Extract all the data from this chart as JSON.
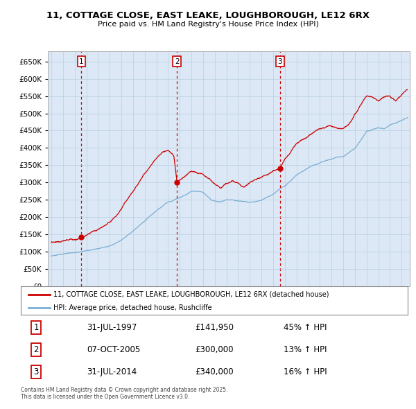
{
  "title": "11, COTTAGE CLOSE, EAST LEAKE, LOUGHBOROUGH, LE12 6RX",
  "subtitle": "Price paid vs. HM Land Registry's House Price Index (HPI)",
  "legend_property": "11, COTTAGE CLOSE, EAST LEAKE, LOUGHBOROUGH, LE12 6RX (detached house)",
  "legend_hpi": "HPI: Average price, detached house, Rushcliffe",
  "footer": "Contains HM Land Registry data © Crown copyright and database right 2025.\nThis data is licensed under the Open Government Licence v3.0.",
  "sales": [
    {
      "num": 1,
      "date": "31-JUL-1997",
      "price": 141950,
      "hpi_text": "45% ↑ HPI",
      "x_year": 1997.58
    },
    {
      "num": 2,
      "date": "07-OCT-2005",
      "price": 300000,
      "hpi_text": "13% ↑ HPI",
      "x_year": 2005.77
    },
    {
      "num": 3,
      "date": "31-JUL-2014",
      "price": 340000,
      "hpi_text": "16% ↑ HPI",
      "x_year": 2014.58
    }
  ],
  "ylim": [
    0,
    680000
  ],
  "yticks": [
    0,
    50000,
    100000,
    150000,
    200000,
    250000,
    300000,
    350000,
    400000,
    450000,
    500000,
    550000,
    600000,
    650000
  ],
  "plot_bg": "#dce8f5",
  "grid_color": "#b8cfe0",
  "red_line_color": "#cc0000",
  "blue_line_color": "#7aafd4",
  "sale_dot_color": "#cc0000",
  "vline_color": "#cc0000",
  "box_color": "#cc0000",
  "xlim_left": 1994.7,
  "xlim_right": 2025.7
}
